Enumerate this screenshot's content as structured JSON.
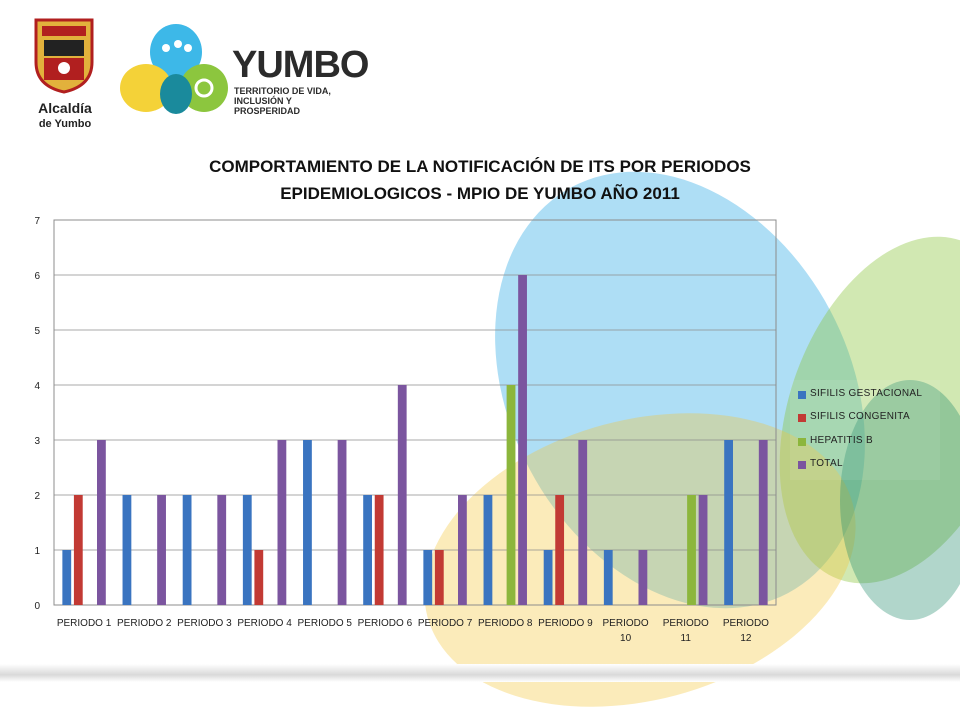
{
  "logos": {
    "alcaldia": {
      "shield_text": "1536 YUMBO 1864",
      "line1": "Alcaldía",
      "line2": "de Yumbo"
    },
    "yumbo": {
      "word": "YUMBO",
      "tagline_1": "TERRITORIO DE VIDA,",
      "tagline_2": "INCLUSIÓN Y PROSPERIDAD"
    }
  },
  "colors": {
    "sifilis_gestacional": "#3a74c0",
    "sifilis_congenita": "#c23a34",
    "hepatitis_b": "#8cb63c",
    "total": "#7b559f",
    "grid": "#8c8c8c"
  },
  "chart_data": {
    "type": "bar",
    "title_line1": "COMPORTAMIENTO  DE LA NOTIFICACIÓN DE ITS  POR  PERIODOS",
    "title_line2": "EPIDEMIOLOGICOS  - MPIO DE YUMBO AÑO 2011",
    "categories": [
      "PERIODO 1",
      "PERIODO 2",
      "PERIODO 3",
      "PERIODO 4",
      "PERIODO 5",
      "PERIODO 6",
      "PERIODO 7",
      "PERIODO 8",
      "PERIODO 9",
      "PERIODO 10",
      "PERIODO 11",
      "PERIODO 12"
    ],
    "category_labels": [
      [
        "PERIODO 1"
      ],
      [
        "PERIODO 2"
      ],
      [
        "PERIODO 3"
      ],
      [
        "PERIODO 4"
      ],
      [
        "PERIODO 5"
      ],
      [
        "PERIODO 6"
      ],
      [
        "PERIODO 7"
      ],
      [
        "PERIODO 8"
      ],
      [
        "PERIODO 9"
      ],
      [
        "PERIODO",
        "10"
      ],
      [
        "PERIODO",
        "11"
      ],
      [
        "PERIODO",
        "12"
      ]
    ],
    "series": [
      {
        "name": "SIFILIS GESTACIONAL",
        "key": "sifilis_gestacional",
        "values": [
          1,
          2,
          2,
          2,
          3,
          2,
          1,
          2,
          1,
          1,
          0,
          3
        ]
      },
      {
        "name": "SIFILIS CONGENITA",
        "key": "sifilis_congenita",
        "values": [
          2,
          0,
          0,
          1,
          0,
          2,
          1,
          0,
          2,
          0,
          0,
          0
        ]
      },
      {
        "name": "HEPATITIS B",
        "key": "hepatitis_b",
        "values": [
          0,
          0,
          0,
          0,
          0,
          0,
          0,
          4,
          0,
          0,
          2,
          0
        ]
      },
      {
        "name": "TOTAL",
        "key": "total",
        "values": [
          3,
          2,
          2,
          3,
          3,
          4,
          2,
          6,
          3,
          1,
          2,
          3
        ]
      }
    ],
    "yticks": [
      0,
      1,
      2,
      3,
      4,
      5,
      6,
      7
    ],
    "ylim": [
      0,
      7
    ],
    "grid": true,
    "legend_position": "right"
  }
}
